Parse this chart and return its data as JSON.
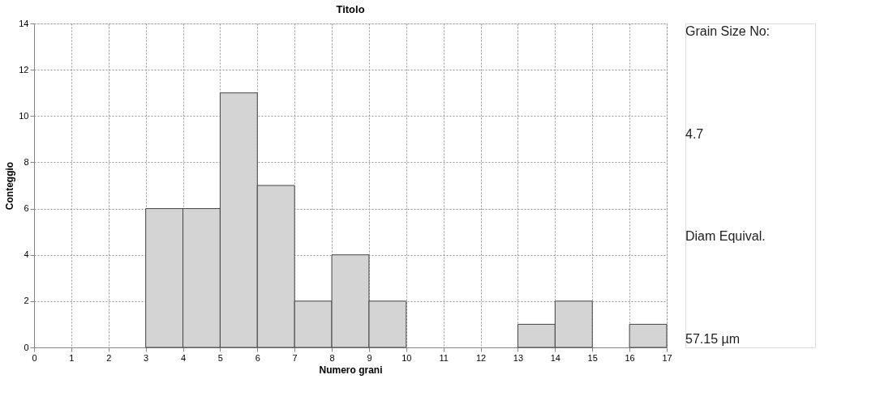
{
  "chart_data": {
    "type": "histogram",
    "title": "Titolo",
    "xlabel": "Numero grani",
    "ylabel": "Conteggio",
    "bins": [
      0,
      1,
      2,
      3,
      4,
      5,
      6,
      7,
      8,
      9,
      10,
      11,
      12,
      13,
      14,
      15,
      16,
      17
    ],
    "values": [
      0,
      0,
      0,
      6,
      6,
      11,
      7,
      2,
      4,
      2,
      0,
      0,
      0,
      1,
      2,
      0,
      1
    ],
    "color": "#d4d4d4",
    "xlim": [
      0,
      17
    ],
    "xticks": [
      0,
      1,
      2,
      3,
      4,
      5,
      6,
      7,
      8,
      9,
      10,
      11,
      12,
      13,
      14,
      15,
      16,
      17
    ],
    "ylim": [
      0,
      14
    ],
    "yticks": [
      0,
      2,
      4,
      6,
      8,
      10,
      12,
      14
    ],
    "grid": true,
    "annotations": [
      "Grain Size No:",
      "4.7",
      "Diam Equival.",
      "57.15  µm"
    ]
  }
}
